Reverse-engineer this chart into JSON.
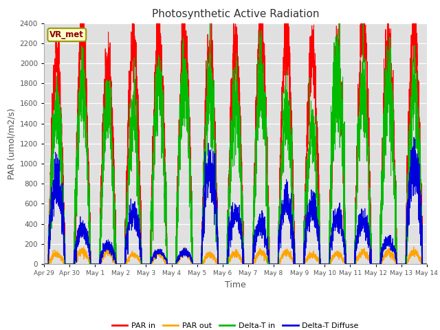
{
  "title": "Photosynthetic Active Radiation",
  "xlabel": "Time",
  "ylabel": "PAR (umol/m2/s)",
  "ylim": [
    0,
    2400
  ],
  "yticks": [
    0,
    200,
    400,
    600,
    800,
    1000,
    1200,
    1400,
    1600,
    1800,
    2000,
    2200,
    2400
  ],
  "colors": {
    "par_in": "#ff0000",
    "par_out": "#ffa500",
    "delta_t_in": "#00bb00",
    "delta_t_diffuse": "#0000dd"
  },
  "legend_labels": [
    "PAR in",
    "PAR out",
    "Delta-T in",
    "Delta-T Diffuse"
  ],
  "label_box": "VR_met",
  "background_color": "#e0e0e0",
  "figure_background": "#ffffff",
  "x_tick_labels": [
    "Apr 29",
    "Apr 30",
    "May 1",
    "May 2",
    "May 3",
    "May 4",
    "May 5",
    "May 6",
    "May 7",
    "May 8",
    "May 9",
    "May 10",
    "May 11",
    "May 12",
    "May 13",
    "May 14"
  ],
  "day_count": 15,
  "points_per_day": 288,
  "par_in_peaks": [
    2050,
    2260,
    1980,
    2230,
    2280,
    2280,
    2100,
    2140,
    2380,
    2280,
    2100,
    2060,
    2350,
    2200,
    2320
  ],
  "par_out_peaks": [
    100,
    130,
    120,
    95,
    105,
    115,
    95,
    110,
    120,
    115,
    95,
    105,
    120,
    120,
    120
  ],
  "dti_peaks": [
    1500,
    1740,
    1560,
    1460,
    1770,
    1780,
    1800,
    1650,
    1840,
    1560,
    1350,
    2060,
    1790,
    1810,
    1720
  ],
  "dtd_peaks": [
    830,
    350,
    185,
    510,
    120,
    120,
    950,
    500,
    400,
    630,
    550,
    460,
    420,
    230,
    960
  ],
  "grid_color": "#c8c8c8",
  "spine_color": "#aaaaaa"
}
